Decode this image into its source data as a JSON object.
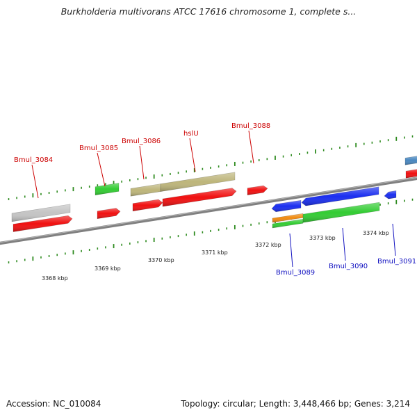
{
  "title": "Burkholderia multivorans ATCC 17616 chromosome 1, complete s...",
  "footer": {
    "accession": "Accession: NC_010084",
    "summary": "Topology: circular; Length: 3,448,466 bp; Genes: 3,214"
  },
  "colors": {
    "backbone": "#808080",
    "tick": "#2e8b1f",
    "label_forward": "#cc0000",
    "label_reverse": "#1010c0",
    "gray_feature": "#c4c4c4",
    "red_cds": "#f01010",
    "green_feature": "#33cc33",
    "khaki_feature": "#bdb57a",
    "blue_feature": "#1a2ef0",
    "orange_feature": "#f08a10",
    "steelblue_feature": "#4a88c0"
  },
  "scale": {
    "unit": "kbp",
    "labels": [
      "3368 kbp",
      "3369 kbp",
      "3370 kbp",
      "3371 kbp",
      "3372 kbp",
      "3373 kbp",
      "3374 kbp"
    ]
  },
  "genes": [
    {
      "name": "Bmul_3084",
      "strand": "forward"
    },
    {
      "name": "Bmul_3085",
      "strand": "forward"
    },
    {
      "name": "Bmul_3086",
      "strand": "forward"
    },
    {
      "name": "hslU",
      "strand": "forward"
    },
    {
      "name": "Bmul_3088",
      "strand": "forward"
    },
    {
      "name": "Bmul_3089",
      "strand": "reverse"
    },
    {
      "name": "Bmul_3090",
      "strand": "reverse"
    },
    {
      "name": "Bmul_3091",
      "strand": "reverse"
    }
  ]
}
